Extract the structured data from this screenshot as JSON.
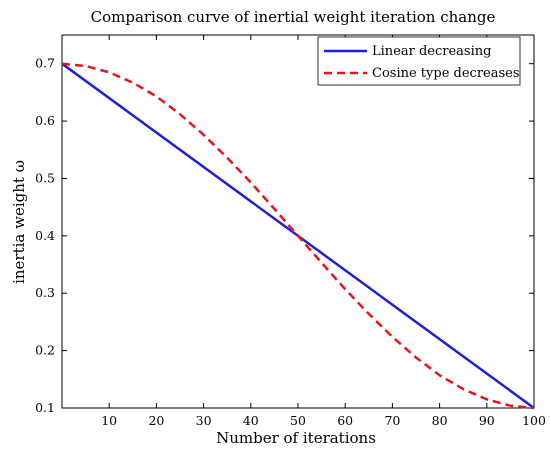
{
  "chart_data": {
    "type": "line",
    "title": "Comparison curve of inertial weight iteration change",
    "xlabel": "Number of iterations",
    "ylabel": "inertia weight ω",
    "xlim": [
      0,
      100
    ],
    "ylim": [
      0.1,
      0.75
    ],
    "xticks": [
      10,
      20,
      30,
      40,
      50,
      60,
      70,
      80,
      90,
      100
    ],
    "yticks": [
      0.1,
      0.2,
      0.3,
      0.4,
      0.5,
      0.6,
      0.7
    ],
    "grid": false,
    "legend_position": "top-right",
    "series": [
      {
        "name": "Linear decreasing",
        "color": "#1f1fd6",
        "style": "solid",
        "x": [
          0,
          100
        ],
        "y": [
          0.7,
          0.1
        ]
      },
      {
        "name": "Cosine type decreases",
        "color": "#e8141c",
        "style": "dashed",
        "x": [
          0,
          5,
          10,
          15,
          20,
          25,
          30,
          35,
          40,
          45,
          50,
          55,
          60,
          65,
          70,
          75,
          80,
          85,
          90,
          95,
          100
        ],
        "y": [
          0.7,
          0.696,
          0.685,
          0.667,
          0.643,
          0.612,
          0.576,
          0.536,
          0.493,
          0.447,
          0.4,
          0.353,
          0.307,
          0.264,
          0.224,
          0.188,
          0.157,
          0.133,
          0.115,
          0.104,
          0.1
        ]
      }
    ]
  }
}
